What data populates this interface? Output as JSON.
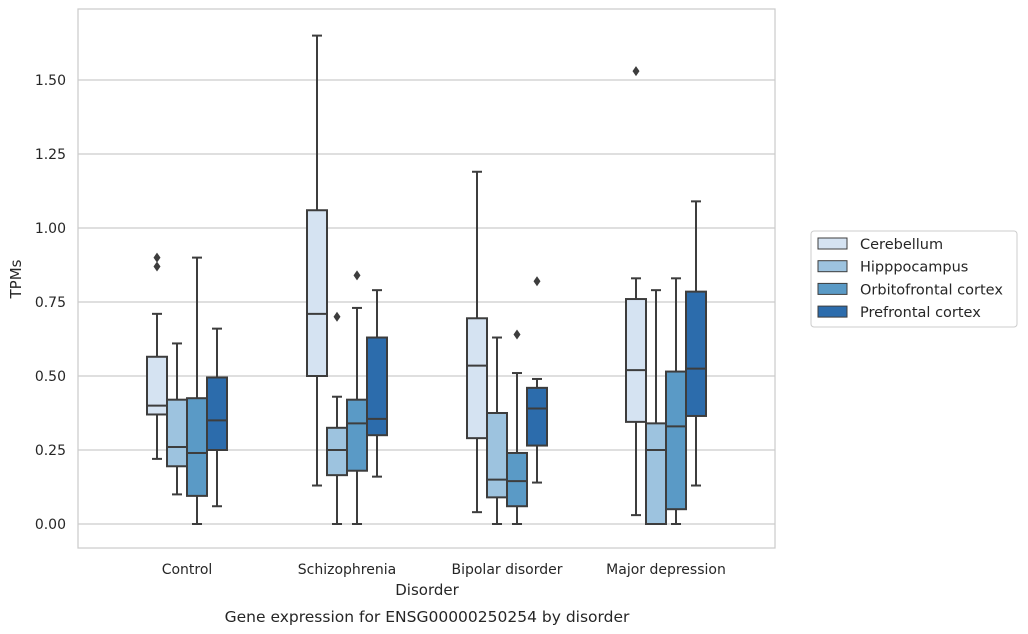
{
  "chart_data": {
    "type": "box",
    "caption": "Gene expression for ENSG00000250254 by disorder",
    "xlabel": "Disorder",
    "ylabel": "TPMs",
    "ylim": [
      -0.08,
      1.74
    ],
    "yticks": [
      "0.00",
      "0.25",
      "0.50",
      "0.75",
      "1.00",
      "1.25",
      "1.50"
    ],
    "ytick_values": [
      0,
      0.25,
      0.5,
      0.75,
      1.0,
      1.25,
      1.5
    ],
    "grid": true,
    "legend_position": "right",
    "categories": [
      "Control",
      "Schizophrenia",
      "Bipolar disorder",
      "Major depression"
    ],
    "series": [
      {
        "name": "Cerebellum",
        "color": "#d5e3f2",
        "boxes": [
          {
            "whisker_low": 0.22,
            "q1": 0.37,
            "median": 0.4,
            "q3": 0.565,
            "whisker_high": 0.71,
            "outliers": [
              0.87,
              0.9
            ]
          },
          {
            "whisker_low": 0.13,
            "q1": 0.5,
            "median": 0.71,
            "q3": 1.06,
            "whisker_high": 1.65,
            "outliers": []
          },
          {
            "whisker_low": 0.04,
            "q1": 0.29,
            "median": 0.535,
            "q3": 0.695,
            "whisker_high": 1.19,
            "outliers": []
          },
          {
            "whisker_low": 0.03,
            "q1": 0.345,
            "median": 0.52,
            "q3": 0.76,
            "whisker_high": 0.83,
            "outliers": [
              1.53
            ]
          }
        ]
      },
      {
        "name": "Hipppocampus",
        "color": "#9dc3df",
        "boxes": [
          {
            "whisker_low": 0.1,
            "q1": 0.195,
            "median": 0.26,
            "q3": 0.42,
            "whisker_high": 0.61,
            "outliers": []
          },
          {
            "whisker_low": 0.0,
            "q1": 0.165,
            "median": 0.25,
            "q3": 0.325,
            "whisker_high": 0.43,
            "outliers": [
              0.7
            ]
          },
          {
            "whisker_low": 0.0,
            "q1": 0.09,
            "median": 0.15,
            "q3": 0.375,
            "whisker_high": 0.63,
            "outliers": []
          },
          {
            "whisker_low": 0.0,
            "q1": 0.0,
            "median": 0.25,
            "q3": 0.34,
            "whisker_high": 0.79,
            "outliers": []
          }
        ]
      },
      {
        "name": "Orbitofrontal cortex",
        "color": "#5a9ac6",
        "boxes": [
          {
            "whisker_low": 0.0,
            "q1": 0.095,
            "median": 0.24,
            "q3": 0.425,
            "whisker_high": 0.9,
            "outliers": []
          },
          {
            "whisker_low": 0.0,
            "q1": 0.18,
            "median": 0.34,
            "q3": 0.42,
            "whisker_high": 0.73,
            "outliers": [
              0.84
            ]
          },
          {
            "whisker_low": 0.0,
            "q1": 0.06,
            "median": 0.145,
            "q3": 0.24,
            "whisker_high": 0.51,
            "outliers": [
              0.64
            ]
          },
          {
            "whisker_low": 0.0,
            "q1": 0.05,
            "median": 0.33,
            "q3": 0.515,
            "whisker_high": 0.83,
            "outliers": []
          }
        ]
      },
      {
        "name": "Prefrontal cortex",
        "color": "#2c6cac",
        "boxes": [
          {
            "whisker_low": 0.06,
            "q1": 0.25,
            "median": 0.35,
            "q3": 0.495,
            "whisker_high": 0.66,
            "outliers": []
          },
          {
            "whisker_low": 0.16,
            "q1": 0.3,
            "median": 0.355,
            "q3": 0.63,
            "whisker_high": 0.79,
            "outliers": []
          },
          {
            "whisker_low": 0.14,
            "q1": 0.265,
            "median": 0.39,
            "q3": 0.46,
            "whisker_high": 0.49,
            "outliers": [
              0.82
            ]
          },
          {
            "whisker_low": 0.13,
            "q1": 0.365,
            "median": 0.525,
            "q3": 0.785,
            "whisker_high": 1.09,
            "outliers": []
          }
        ]
      }
    ]
  }
}
